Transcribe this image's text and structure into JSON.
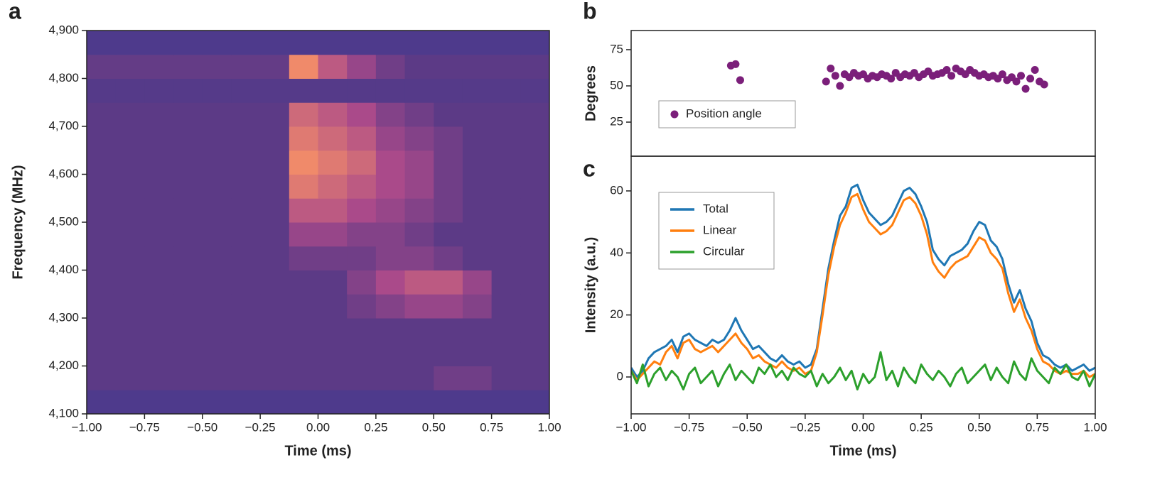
{
  "chart_data": [
    {
      "type": "heatmap",
      "panel_label": "a",
      "x_label": "Time (ms)",
      "y_label": "Frequency (MHz)",
      "xlim": [
        -1,
        1
      ],
      "ylim": [
        4100,
        4900
      ],
      "xticks": [
        {
          "value": -1,
          "label": "−1.00"
        },
        {
          "value": -0.75,
          "label": "−0.75"
        },
        {
          "value": -0.5,
          "label": "−0.50"
        },
        {
          "value": -0.25,
          "label": "−0.25"
        },
        {
          "value": 0,
          "label": "0.00"
        },
        0.25,
        {
          "value": 0.5,
          "label": "0.50"
        },
        0.75,
        {
          "value": 1,
          "label": "1.00"
        }
      ],
      "yticks": [
        {
          "value": 4100,
          "label": "4,100"
        },
        {
          "value": 4200,
          "label": "4,200"
        },
        {
          "value": 4300,
          "label": "4,300"
        },
        {
          "value": 4400,
          "label": "4,400"
        },
        {
          "value": 4500,
          "label": "4,500"
        },
        {
          "value": 4600,
          "label": "4,600"
        },
        {
          "value": 4700,
          "label": "4,700"
        },
        {
          "value": 4800,
          "label": "4,800"
        },
        {
          "value": 4900,
          "label": "4,900"
        }
      ],
      "x_edges": [
        -1,
        -0.875,
        -0.75,
        -0.625,
        -0.5,
        -0.375,
        -0.25,
        -0.125,
        0,
        0.125,
        0.25,
        0.375,
        0.5,
        0.625,
        0.75,
        0.875,
        1
      ],
      "y_edges": [
        4100,
        4150,
        4200,
        4250,
        4300,
        4350,
        4400,
        4450,
        4500,
        4550,
        4600,
        4650,
        4700,
        4750,
        4800,
        4850,
        4900
      ],
      "z": [
        [
          0.1,
          0.1,
          0.1,
          0.1,
          0.1,
          0.1,
          0.1,
          0.1,
          0.1,
          0.1,
          0.1,
          0.1,
          0.1,
          0.1,
          0.1,
          0.1
        ],
        [
          0.3,
          0.3,
          0.3,
          0.3,
          0.3,
          0.3,
          0.3,
          0.3,
          0.3,
          0.3,
          0.3,
          0.3,
          0.35,
          0.35,
          0.3,
          0.3
        ],
        [
          0.3,
          0.3,
          0.3,
          0.3,
          0.3,
          0.3,
          0.3,
          0.3,
          0.3,
          0.3,
          0.3,
          0.3,
          0.3,
          0.3,
          0.3,
          0.3
        ],
        [
          0.3,
          0.3,
          0.3,
          0.3,
          0.3,
          0.3,
          0.3,
          0.3,
          0.3,
          0.3,
          0.3,
          0.3,
          0.3,
          0.3,
          0.3,
          0.3
        ],
        [
          0.3,
          0.3,
          0.3,
          0.3,
          0.3,
          0.3,
          0.3,
          0.3,
          0.3,
          0.35,
          0.4,
          0.45,
          0.45,
          0.4,
          0.3,
          0.3
        ],
        [
          0.3,
          0.3,
          0.3,
          0.3,
          0.3,
          0.3,
          0.3,
          0.3,
          0.3,
          0.4,
          0.5,
          0.55,
          0.55,
          0.45,
          0.3,
          0.3
        ],
        [
          0.3,
          0.3,
          0.3,
          0.3,
          0.3,
          0.3,
          0.3,
          0.35,
          0.35,
          0.35,
          0.4,
          0.4,
          0.35,
          0.3,
          0.3,
          0.3
        ],
        [
          0.3,
          0.3,
          0.3,
          0.3,
          0.3,
          0.3,
          0.3,
          0.45,
          0.45,
          0.4,
          0.4,
          0.35,
          0.3,
          0.3,
          0.3,
          0.3
        ],
        [
          0.3,
          0.3,
          0.3,
          0.3,
          0.3,
          0.3,
          0.3,
          0.55,
          0.55,
          0.5,
          0.45,
          0.4,
          0.35,
          0.3,
          0.3,
          0.3
        ],
        [
          0.3,
          0.3,
          0.3,
          0.3,
          0.3,
          0.3,
          0.3,
          0.65,
          0.6,
          0.55,
          0.5,
          0.45,
          0.35,
          0.3,
          0.3,
          0.3
        ],
        [
          0.3,
          0.3,
          0.3,
          0.3,
          0.3,
          0.3,
          0.3,
          0.7,
          0.65,
          0.6,
          0.5,
          0.45,
          0.35,
          0.3,
          0.3,
          0.3
        ],
        [
          0.3,
          0.3,
          0.3,
          0.3,
          0.3,
          0.3,
          0.3,
          0.65,
          0.6,
          0.55,
          0.45,
          0.4,
          0.35,
          0.3,
          0.3,
          0.3
        ],
        [
          0.3,
          0.3,
          0.3,
          0.3,
          0.3,
          0.3,
          0.3,
          0.6,
          0.55,
          0.5,
          0.4,
          0.35,
          0.3,
          0.3,
          0.3,
          0.3
        ],
        [
          0.2,
          0.2,
          0.2,
          0.2,
          0.2,
          0.2,
          0.2,
          0.2,
          0.2,
          0.2,
          0.2,
          0.2,
          0.2,
          0.2,
          0.2,
          0.2
        ],
        [
          0.32,
          0.32,
          0.32,
          0.32,
          0.32,
          0.32,
          0.32,
          0.7,
          0.55,
          0.45,
          0.35,
          0.3,
          0.3,
          0.3,
          0.3,
          0.3
        ],
        [
          0.1,
          0.1,
          0.1,
          0.1,
          0.1,
          0.1,
          0.1,
          0.1,
          0.1,
          0.1,
          0.1,
          0.1,
          0.1,
          0.1,
          0.1,
          0.1
        ]
      ]
    },
    {
      "type": "scatter",
      "panel_label": "b",
      "y_label": "Degrees",
      "legend": "lower left",
      "xlim": [
        -1,
        1
      ],
      "ylim": [
        1.5,
        88.2
      ],
      "yticks": [
        25,
        50,
        75
      ],
      "series": [
        {
          "name": "Position angle",
          "color": "#7b1f7a",
          "x": [
            -0.57,
            -0.55,
            -0.53,
            -0.16,
            -0.14,
            -0.12,
            -0.1,
            -0.08,
            -0.06,
            -0.04,
            -0.02,
            0,
            0.02,
            0.04,
            0.06,
            0.08,
            0.1,
            0.12,
            0.14,
            0.16,
            0.18,
            0.2,
            0.22,
            0.24,
            0.26,
            0.28,
            0.3,
            0.32,
            0.34,
            0.36,
            0.38,
            0.4,
            0.42,
            0.44,
            0.46,
            0.48,
            0.5,
            0.52,
            0.54,
            0.56,
            0.58,
            0.6,
            0.62,
            0.64,
            0.66,
            0.68,
            0.7,
            0.72,
            0.74,
            0.76,
            0.78
          ],
          "values": [
            64,
            65,
            54,
            53,
            62,
            57,
            50,
            58,
            56,
            59,
            57,
            58,
            55,
            57,
            56,
            58,
            57,
            55,
            59,
            56,
            58,
            57,
            59,
            56,
            58,
            60,
            57,
            58,
            59,
            61,
            57,
            62,
            60,
            58,
            61,
            59,
            57,
            58,
            56,
            57,
            55,
            58,
            54,
            56,
            53,
            57,
            48,
            55,
            61,
            53,
            51
          ]
        }
      ]
    },
    {
      "type": "line",
      "panel_label": "c",
      "x_label": "Time (ms)",
      "y_label": "Intensity (a.u.)",
      "legend": "upper left",
      "xlim": [
        -1,
        1
      ],
      "ylim": [
        -11.9,
        71.2
      ],
      "xticks": [
        {
          "value": -1,
          "label": "−1.00"
        },
        {
          "value": -0.75,
          "label": "−0.75"
        },
        {
          "value": -0.5,
          "label": "−0.50"
        },
        {
          "value": -0.25,
          "label": "−0.25"
        },
        {
          "value": 0,
          "label": "0.00"
        },
        0.25,
        {
          "value": 0.5,
          "label": "0.50"
        },
        0.75,
        {
          "value": 1,
          "label": "1.00"
        }
      ],
      "yticks": [
        0,
        20,
        40,
        60
      ],
      "x": [
        -1,
        -0.975,
        -0.95,
        -0.925,
        -0.9,
        -0.875,
        -0.85,
        -0.825,
        -0.8,
        -0.775,
        -0.75,
        -0.725,
        -0.7,
        -0.675,
        -0.65,
        -0.625,
        -0.6,
        -0.575,
        -0.55,
        -0.525,
        -0.5,
        -0.475,
        -0.45,
        -0.425,
        -0.4,
        -0.375,
        -0.35,
        -0.325,
        -0.3,
        -0.275,
        -0.25,
        -0.225,
        -0.2,
        -0.175,
        -0.15,
        -0.125,
        -0.1,
        -0.075,
        -0.05,
        -0.025,
        0,
        0.025,
        0.05,
        0.075,
        0.1,
        0.125,
        0.15,
        0.175,
        0.2,
        0.225,
        0.25,
        0.275,
        0.3,
        0.325,
        0.35,
        0.375,
        0.4,
        0.425,
        0.45,
        0.475,
        0.5,
        0.525,
        0.55,
        0.575,
        0.6,
        0.625,
        0.65,
        0.675,
        0.7,
        0.725,
        0.75,
        0.775,
        0.8,
        0.825,
        0.85,
        0.875,
        0.9,
        0.925,
        0.95,
        0.975,
        1
      ],
      "series": [
        {
          "name": "Total",
          "color": "#1f77b4",
          "values": [
            3,
            0,
            2,
            6,
            8,
            9,
            10,
            12,
            8,
            13,
            14,
            12,
            11,
            10,
            12,
            11,
            12,
            15,
            19,
            15,
            12,
            9,
            10,
            8,
            6,
            5,
            7,
            5,
            4,
            5,
            3,
            4,
            9,
            22,
            35,
            44,
            52,
            55,
            61,
            62,
            57,
            53,
            51,
            49,
            50,
            52,
            56,
            60,
            61,
            59,
            55,
            50,
            41,
            38,
            36,
            39,
            40,
            41,
            43,
            47,
            50,
            49,
            44,
            42,
            38,
            30,
            24,
            28,
            22,
            18,
            11,
            7,
            6,
            4,
            3,
            4,
            2,
            3,
            4,
            2,
            3
          ]
        },
        {
          "name": "Linear",
          "color": "#ff7f0e",
          "values": [
            2,
            -1,
            1,
            3,
            5,
            4,
            8,
            10,
            6,
            11,
            12,
            9,
            8,
            9,
            10,
            8,
            10,
            12,
            14,
            11,
            9,
            6,
            7,
            5,
            4,
            3,
            5,
            3,
            2,
            3,
            1,
            2,
            8,
            20,
            33,
            42,
            49,
            53,
            58,
            59,
            54,
            50,
            48,
            46,
            47,
            49,
            53,
            57,
            58,
            56,
            52,
            46,
            37,
            34,
            32,
            35,
            37,
            38,
            39,
            42,
            45,
            44,
            40,
            38,
            35,
            27,
            21,
            25,
            19,
            15,
            9,
            5,
            4,
            2,
            1,
            2,
            1,
            1,
            2,
            0,
            1
          ]
        },
        {
          "name": "Circular",
          "color": "#2ca02c",
          "values": [
            2,
            -2,
            4,
            -3,
            1,
            3,
            -1,
            2,
            0,
            -4,
            1,
            3,
            -2,
            0,
            2,
            -3,
            1,
            4,
            -1,
            2,
            0,
            -2,
            3,
            1,
            4,
            0,
            2,
            -1,
            3,
            1,
            0,
            2,
            -3,
            1,
            -2,
            0,
            3,
            -1,
            2,
            -4,
            1,
            -2,
            0,
            8,
            -1,
            2,
            -3,
            3,
            0,
            -2,
            4,
            1,
            -1,
            2,
            0,
            -3,
            1,
            3,
            -2,
            0,
            2,
            4,
            -1,
            3,
            0,
            -2,
            5,
            1,
            -1,
            6,
            2,
            0,
            -2,
            3,
            1,
            4,
            0,
            -1,
            2,
            -3,
            1
          ]
        }
      ]
    }
  ]
}
